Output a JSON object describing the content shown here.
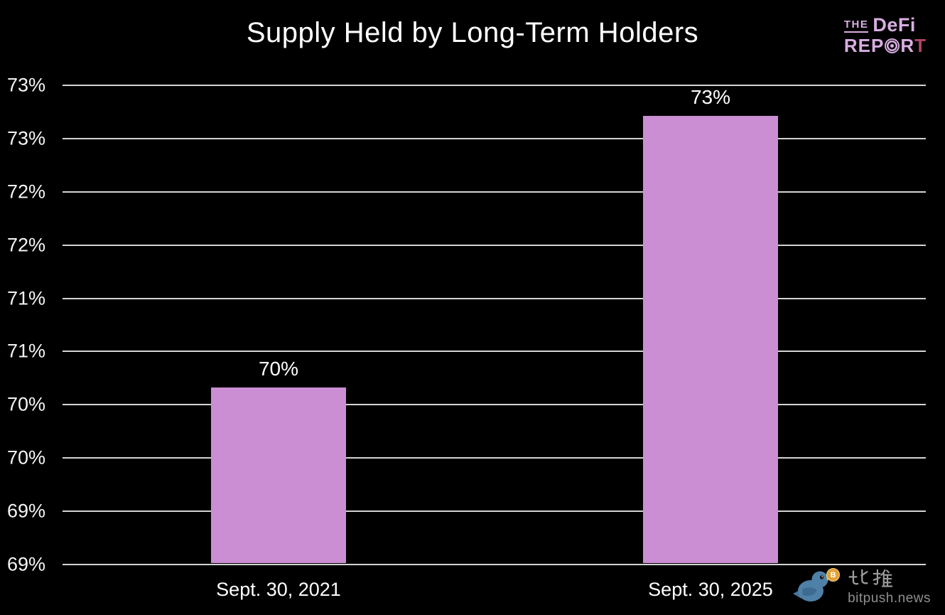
{
  "brand": {
    "the": "THE",
    "defi": "DeFi",
    "report_pre": "REP",
    "report_r": "R",
    "report_t": "T",
    "color": "#d9aee2",
    "accent_color": "#b04468"
  },
  "watermark": {
    "cn": "比推",
    "domain": "bitpush.news",
    "coin_letter": "B"
  },
  "chart_data": {
    "type": "bar",
    "title": "Supply Held by Long-Term Holders",
    "categories": [
      "Sept. 30, 2021",
      "Sept. 30, 2025"
    ],
    "values": [
      70.45,
      73.0
    ],
    "data_labels": [
      "70%",
      "73%"
    ],
    "bar_color": "#cb8ed2",
    "background_color": "#000000",
    "gridline_color": "#d4d4d4",
    "text_color": "#ffffff",
    "grid": true,
    "legend": false,
    "xlabel": "",
    "ylabel": "",
    "y_axis": {
      "min": 68.8,
      "max": 73.3,
      "step": 0.5,
      "tick_labels_top_to_bottom": [
        "73%",
        "73%",
        "72%",
        "72%",
        "71%",
        "71%",
        "70%",
        "70%",
        "69%",
        "69%"
      ]
    }
  }
}
